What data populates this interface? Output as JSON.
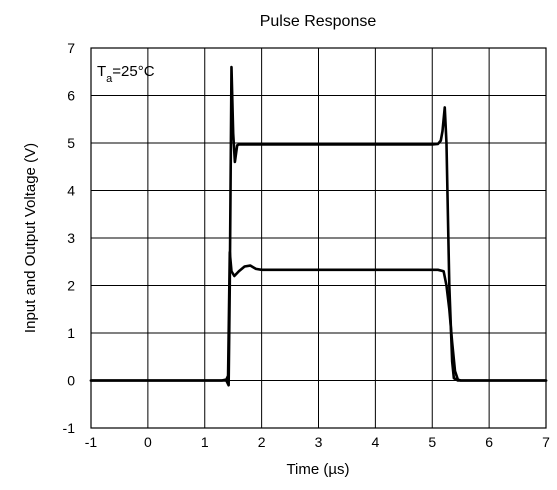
{
  "chart_data": {
    "type": "line",
    "title": "Pulse Response",
    "xlabel": "Time (µs)",
    "ylabel": "Input and Output Voltage (V)",
    "xlim": [
      -1,
      7
    ],
    "ylim": [
      -1,
      7
    ],
    "xticks": [
      -1,
      0,
      1,
      2,
      3,
      4,
      5,
      6,
      7
    ],
    "yticks": [
      -1,
      0,
      1,
      2,
      3,
      4,
      5,
      6,
      7
    ],
    "grid": true,
    "annotation": {
      "base": "T",
      "sub": "a",
      "rest": "=25°C"
    },
    "series": [
      {
        "x": [
          -1,
          1.3,
          1.38,
          1.42,
          1.44,
          1.47,
          1.5,
          1.53,
          1.57,
          1.6,
          1.65,
          2.0,
          3.0,
          4.0,
          5.0,
          5.1,
          5.15,
          5.18,
          5.22,
          5.25,
          5.3,
          5.35,
          5.38,
          5.45,
          7
        ],
        "y": [
          0,
          0,
          0.0,
          -0.1,
          2.0,
          6.6,
          5.2,
          4.6,
          4.95,
          4.97,
          4.97,
          4.97,
          4.97,
          4.97,
          4.97,
          4.98,
          5.05,
          5.25,
          5.75,
          5.0,
          2.0,
          0.4,
          0.05,
          0,
          0
        ]
      },
      {
        "x": [
          -1,
          1.3,
          1.38,
          1.41,
          1.44,
          1.47,
          1.52,
          1.6,
          1.7,
          1.8,
          1.9,
          2.0,
          3.0,
          4.0,
          5.0,
          5.1,
          5.2,
          5.25,
          5.3,
          5.35,
          5.4,
          5.45,
          5.5,
          7
        ],
        "y": [
          0,
          0,
          0.02,
          0.1,
          2.7,
          2.3,
          2.2,
          2.3,
          2.4,
          2.42,
          2.35,
          2.33,
          2.33,
          2.33,
          2.33,
          2.33,
          2.3,
          2.0,
          1.5,
          0.8,
          0.2,
          0.02,
          0,
          0
        ]
      }
    ]
  }
}
